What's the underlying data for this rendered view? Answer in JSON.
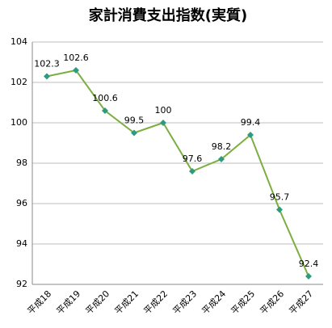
{
  "chart_data": {
    "type": "line",
    "title": "家計消費支出指数(実質)",
    "categories": [
      "平成18",
      "平成19",
      "平成20",
      "平成21",
      "平成22",
      "平成23",
      "平成24",
      "平成25",
      "平成26",
      "平成27"
    ],
    "values": [
      102.3,
      102.6,
      100.6,
      99.5,
      100,
      97.6,
      98.2,
      99.4,
      95.7,
      92.4
    ],
    "color": "#7aaf3f",
    "marker_color": "#2e9b7f",
    "ylim": [
      92,
      104
    ],
    "yticks": [
      92,
      94,
      96,
      98,
      100,
      102,
      104
    ],
    "grid": true
  }
}
